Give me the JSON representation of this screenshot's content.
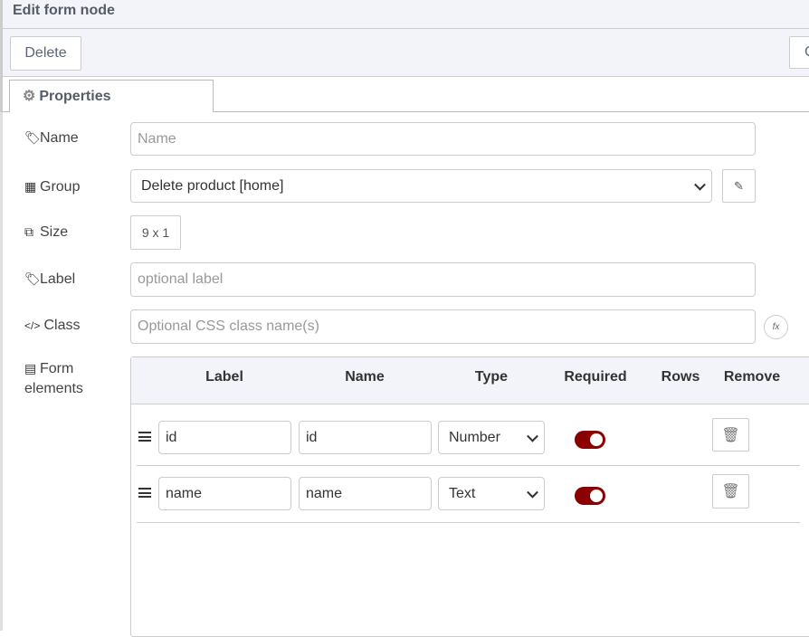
{
  "title": "Edit form node",
  "toolbar": {
    "delete_label": "Delete",
    "right_button_label": "C"
  },
  "tabs": [
    {
      "label": "Properties",
      "icon": "gear-icon"
    }
  ],
  "fields": {
    "name": {
      "label": "Name",
      "icon": "tag-icon",
      "value": "",
      "placeholder": "Name"
    },
    "group": {
      "label": "Group",
      "icon": "table-icon",
      "value": "Delete product [home]"
    },
    "size": {
      "label": "Size",
      "icon": "resize-icon",
      "value": "9 x 1"
    },
    "label": {
      "label": "Label",
      "icon": "tag-icon",
      "value": "",
      "placeholder": "optional label"
    },
    "class": {
      "label": "Class",
      "icon": "code-icon",
      "value": "",
      "placeholder": "Optional CSS class name(s)",
      "fx": "fx"
    },
    "form_elements": {
      "label_line1": "Form",
      "label_line2": "elements",
      "icon": "list-icon"
    }
  },
  "table": {
    "headers": [
      "Label",
      "Name",
      "Type",
      "Required",
      "Rows",
      "Remove"
    ],
    "rows": [
      {
        "label": "id",
        "name": "id",
        "type": "Number",
        "required": true
      },
      {
        "label": "name",
        "name": "name",
        "type": "Text",
        "required": true
      }
    ]
  },
  "colors": {
    "toggle_on": "#8b0000",
    "header_bg": "#f3f3fa"
  }
}
